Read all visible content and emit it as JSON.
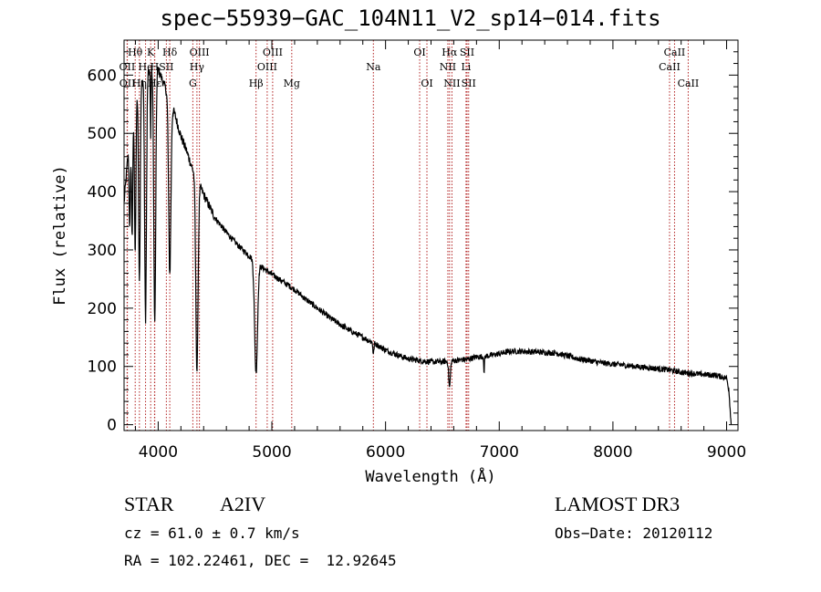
{
  "title": "spec−55939−GAC_104N11_V2_sp14−014.fits",
  "footer": {
    "object_class": "STAR",
    "subclass": "A2IV",
    "survey": "LAMOST DR3",
    "cz": "cz = 61.0 ± 0.7 km/s",
    "obs_date": "Obs−Date: 20120112",
    "coords": "RA = 102.22461, DEC =  12.92645"
  },
  "colors": {
    "spectrum": "#000000",
    "line_marker": "#b22222"
  },
  "chart_data": {
    "type": "line",
    "xlabel": "Wavelength (Å)",
    "ylabel": "Flux (relative)",
    "xlim": [
      3700,
      9100
    ],
    "ylim": [
      -10,
      660
    ],
    "xticks": [
      4000,
      5000,
      6000,
      7000,
      8000,
      9000
    ],
    "yticks": [
      0,
      100,
      200,
      300,
      400,
      500,
      600
    ],
    "continuum": [
      [
        3700,
        380
      ],
      [
        3750,
        500
      ],
      [
        3800,
        560
      ],
      [
        3850,
        590
      ],
      [
        3900,
        605
      ],
      [
        3950,
        610
      ],
      [
        3990,
        615
      ],
      [
        4020,
        600
      ],
      [
        4050,
        585
      ],
      [
        4100,
        560
      ],
      [
        4150,
        530
      ],
      [
        4200,
        495
      ],
      [
        4250,
        470
      ],
      [
        4300,
        440
      ],
      [
        4350,
        418
      ],
      [
        4400,
        395
      ],
      [
        4450,
        375
      ],
      [
        4500,
        355
      ],
      [
        4600,
        330
      ],
      [
        4700,
        308
      ],
      [
        4800,
        290
      ],
      [
        4900,
        272
      ],
      [
        5000,
        258
      ],
      [
        5100,
        245
      ],
      [
        5200,
        232
      ],
      [
        5300,
        215
      ],
      [
        5400,
        200
      ],
      [
        5500,
        185
      ],
      [
        5600,
        172
      ],
      [
        5700,
        160
      ],
      [
        5800,
        150
      ],
      [
        5900,
        140
      ],
      [
        6000,
        128
      ],
      [
        6100,
        120
      ],
      [
        6200,
        113
      ],
      [
        6300,
        110
      ],
      [
        6400,
        108
      ],
      [
        6500,
        108
      ],
      [
        6600,
        110
      ],
      [
        6700,
        112
      ],
      [
        6800,
        116
      ],
      [
        6900,
        118
      ],
      [
        7000,
        122
      ],
      [
        7100,
        126
      ],
      [
        7200,
        126
      ],
      [
        7300,
        125
      ],
      [
        7400,
        124
      ],
      [
        7500,
        123
      ],
      [
        7600,
        118
      ],
      [
        7700,
        113
      ],
      [
        7800,
        110
      ],
      [
        7900,
        106
      ],
      [
        8000,
        104
      ],
      [
        8100,
        102
      ],
      [
        8200,
        100
      ],
      [
        8300,
        98
      ],
      [
        8400,
        96
      ],
      [
        8500,
        94
      ],
      [
        8600,
        90
      ],
      [
        8700,
        88
      ],
      [
        8800,
        86
      ],
      [
        8900,
        85
      ],
      [
        9000,
        80
      ],
      [
        9020,
        60
      ],
      [
        9040,
        0
      ]
    ],
    "absorption_features": [
      {
        "center": 3750,
        "depth": 160,
        "width": 8
      },
      {
        "center": 3771,
        "depth": 200,
        "width": 8
      },
      {
        "center": 3798,
        "depth": 260,
        "width": 9
      },
      {
        "center": 3835,
        "depth": 340,
        "width": 10
      },
      {
        "center": 3889,
        "depth": 420,
        "width": 11
      },
      {
        "center": 3934,
        "depth": 120,
        "width": 4
      },
      {
        "center": 3970,
        "depth": 440,
        "width": 12
      },
      {
        "center": 4102,
        "depth": 300,
        "width": 14
      },
      {
        "center": 4341,
        "depth": 330,
        "width": 14
      },
      {
        "center": 4861,
        "depth": 190,
        "width": 18
      },
      {
        "center": 5893,
        "depth": 20,
        "width": 6
      },
      {
        "center": 6563,
        "depth": 45,
        "width": 10
      },
      {
        "center": 6867,
        "depth": 30,
        "width": 4
      }
    ],
    "noise_amplitude": 5,
    "markers": [
      {
        "name": "Hθ",
        "wavelength": 3798,
        "row": 1
      },
      {
        "name": "OII",
        "wavelength": 3727,
        "row": 2
      },
      {
        "name": "OII",
        "wavelength": 3729,
        "row": 3
      },
      {
        "name": "Hη",
        "wavelength": 3835,
        "row": 3
      },
      {
        "name": "He",
        "wavelength": 3889,
        "row": 2
      },
      {
        "name": "Hε",
        "wavelength": 3970,
        "row": 3
      },
      {
        "name": "K",
        "wavelength": 3934,
        "row": 1
      },
      {
        "name": "H",
        "wavelength": 3968,
        "row": 2
      },
      {
        "name": "Hδ",
        "wavelength": 4102,
        "row": 1
      },
      {
        "name": "SII",
        "wavelength": 4072,
        "row": 2
      },
      {
        "name": "OIII",
        "wavelength": 4363,
        "row": 1
      },
      {
        "name": "Hγ",
        "wavelength": 4341,
        "row": 2
      },
      {
        "name": "G",
        "wavelength": 4305,
        "row": 3
      },
      {
        "name": "Hβ",
        "wavelength": 4861,
        "row": 3
      },
      {
        "name": "OIII",
        "wavelength": 5007,
        "row": 1
      },
      {
        "name": "OIII",
        "wavelength": 4959,
        "row": 2
      },
      {
        "name": "Mg",
        "wavelength": 5175,
        "row": 3
      },
      {
        "name": "Na",
        "wavelength": 5893,
        "row": 2
      },
      {
        "name": "OI",
        "wavelength": 6300,
        "row": 1
      },
      {
        "name": "OI",
        "wavelength": 6364,
        "row": 3
      },
      {
        "name": "Hα",
        "wavelength": 6563,
        "row": 1
      },
      {
        "name": "NII",
        "wavelength": 6548,
        "row": 2
      },
      {
        "name": "NII",
        "wavelength": 6584,
        "row": 3
      },
      {
        "name": "SII",
        "wavelength": 6717,
        "row": 1
      },
      {
        "name": "Li",
        "wavelength": 6708,
        "row": 2
      },
      {
        "name": "SII",
        "wavelength": 6731,
        "row": 3
      },
      {
        "name": "CaII",
        "wavelength": 8542,
        "row": 1
      },
      {
        "name": "CaII",
        "wavelength": 8498,
        "row": 2
      },
      {
        "name": "CaII",
        "wavelength": 8662,
        "row": 3
      }
    ]
  }
}
